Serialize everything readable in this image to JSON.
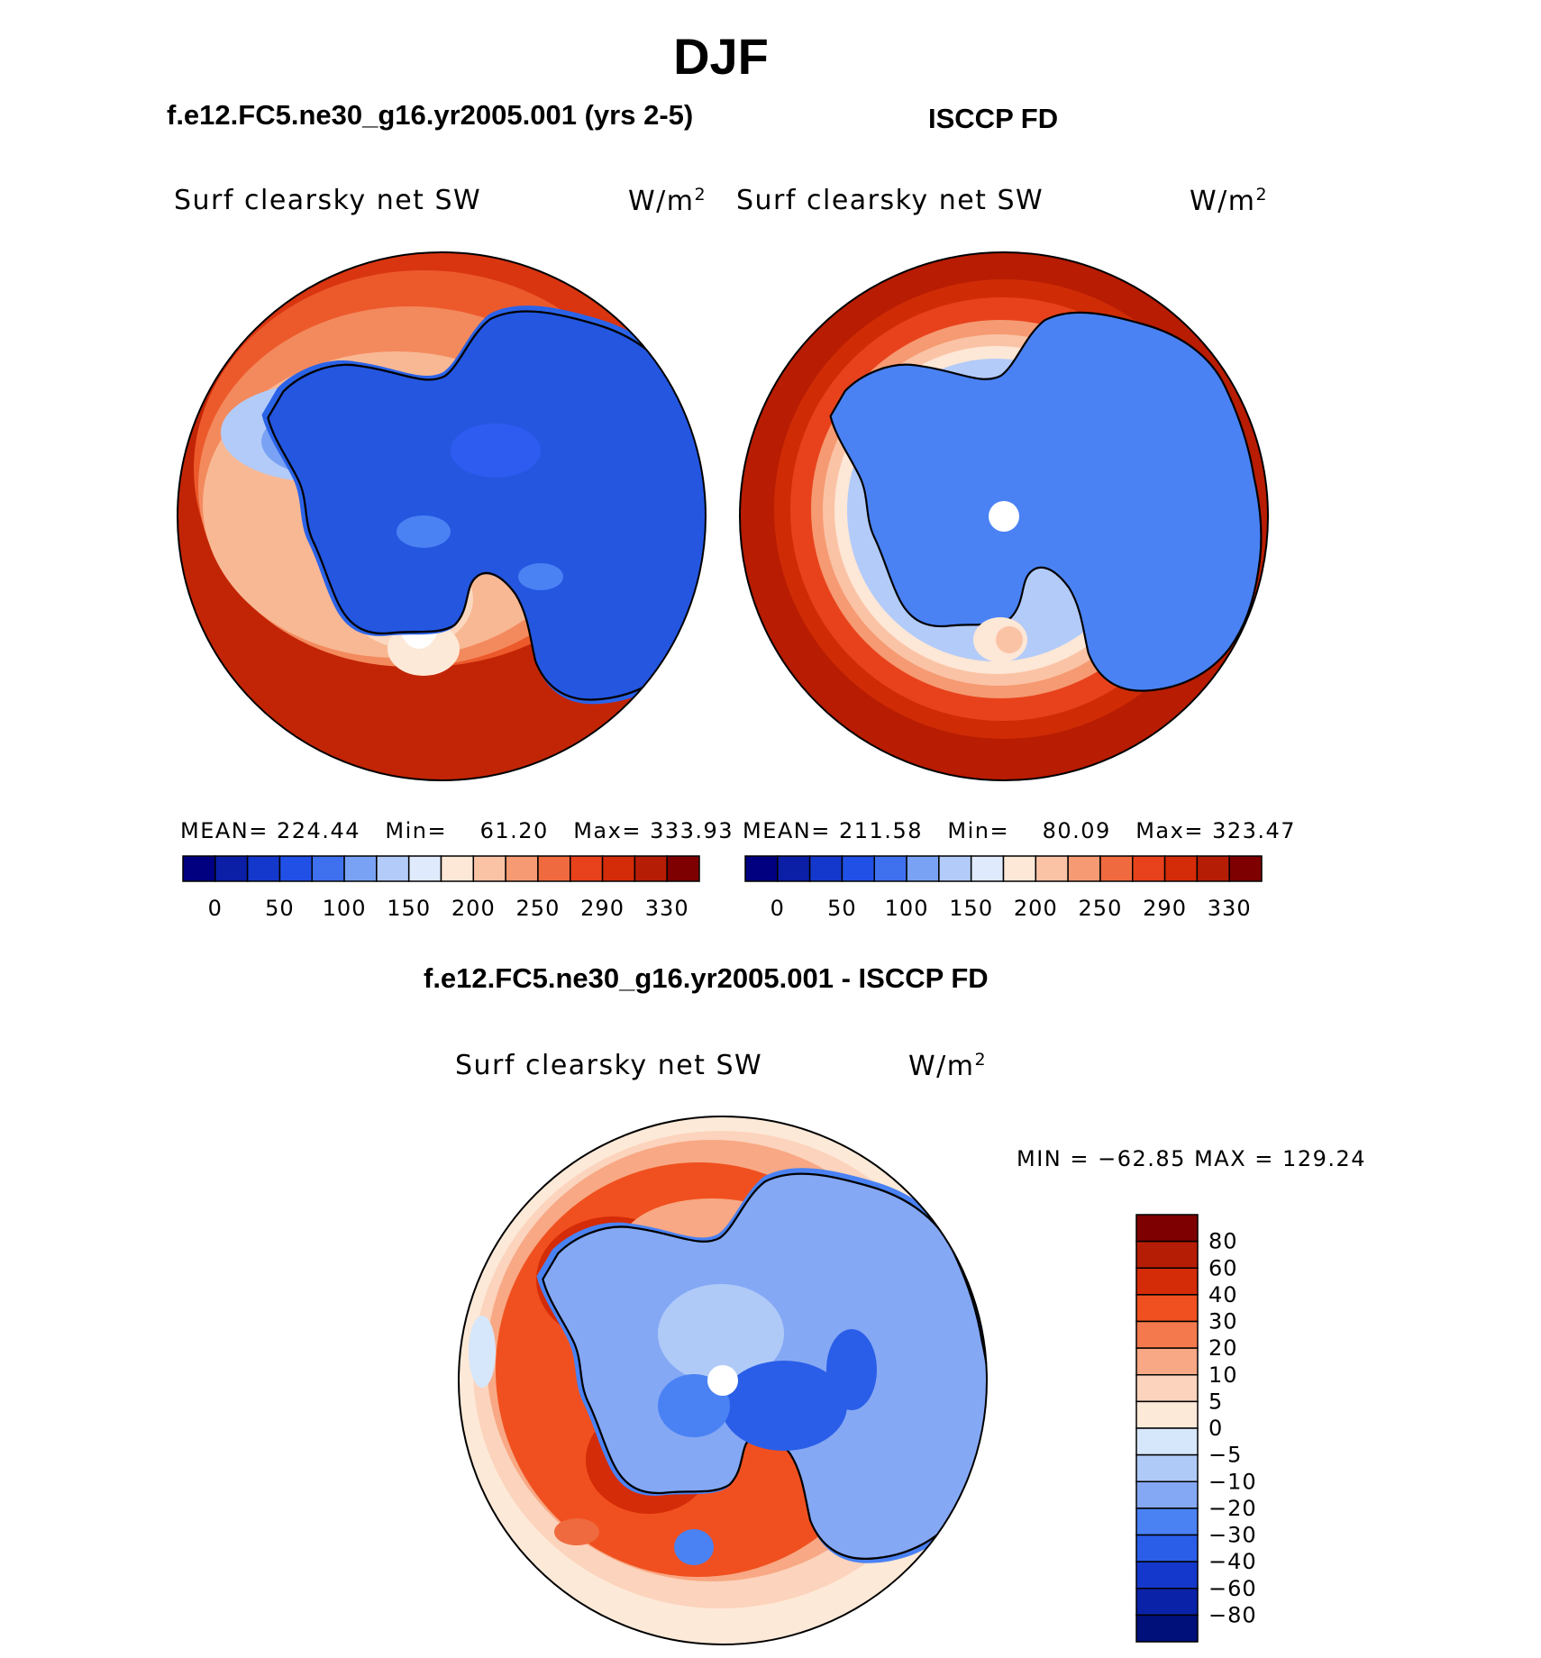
{
  "figure": {
    "title": "DJF",
    "left_panel_title": "f.e12.FC5.ne30_g16.yr2005.001 (yrs 2-5)",
    "right_panel_title": "ISCCP FD",
    "diff_panel_title": "f.e12.FC5.ne30_g16.yr2005.001 - ISCCP FD"
  },
  "colors": {
    "ocean_left": "#c22505",
    "ocean_right": "#b81c02",
    "ice_blue": "#2b63e8",
    "mid_blue": "#4a82f4",
    "coast": "#000000"
  },
  "chart_data": [
    {
      "type": "heatmap",
      "projection": "south-polar-stereographic",
      "name": "model",
      "variable_label": "Surf clearsky net SW",
      "units": "W/m",
      "units_superscript": "2",
      "stats": {
        "mean_label": "MEAN=",
        "mean": "224.44",
        "min_label": "Min=",
        "min": "61.20",
        "max_label": "Max=",
        "max": "333.93"
      },
      "levels": [
        0,
        25,
        50,
        75,
        100,
        125,
        150,
        175,
        200,
        225,
        250,
        270,
        290,
        310,
        330
      ],
      "tick_labels": [
        "0",
        "50",
        "100",
        "150",
        "200",
        "250",
        "290",
        "330"
      ],
      "palette": [
        "#000080",
        "#0a1ea6",
        "#1438cc",
        "#2050e6",
        "#3f70ee",
        "#7aa2f4",
        "#b3cbf8",
        "#dfeafc",
        "#fde7d6",
        "#fbc3a6",
        "#f59a72",
        "#ef6a3e",
        "#e8421c",
        "#d42b08",
        "#b51d04",
        "#7f0000"
      ]
    },
    {
      "type": "heatmap",
      "projection": "south-polar-stereographic",
      "name": "obs",
      "variable_label": "Surf clearsky net SW",
      "units": "W/m",
      "units_superscript": "2",
      "stats": {
        "mean_label": "MEAN=",
        "mean": "211.58",
        "min_label": "Min=",
        "min": "80.09",
        "max_label": "Max=",
        "max": "323.47"
      },
      "levels": [
        0,
        25,
        50,
        75,
        100,
        125,
        150,
        175,
        200,
        225,
        250,
        270,
        290,
        310,
        330
      ],
      "tick_labels": [
        "0",
        "50",
        "100",
        "150",
        "200",
        "250",
        "290",
        "330"
      ],
      "palette": [
        "#000080",
        "#0a1ea6",
        "#1438cc",
        "#2050e6",
        "#3f70ee",
        "#7aa2f4",
        "#b3cbf8",
        "#dfeafc",
        "#fde7d6",
        "#fbc3a6",
        "#f59a72",
        "#ef6a3e",
        "#e8421c",
        "#d42b08",
        "#b51d04",
        "#7f0000"
      ]
    },
    {
      "type": "heatmap",
      "projection": "south-polar-stereographic",
      "name": "difference",
      "variable_label": "Surf clearsky net SW",
      "units": "W/m",
      "units_superscript": "2",
      "stats": {
        "min_label": "MIN =",
        "min": "−62.85",
        "max_label": "MAX =",
        "max": "129.24"
      },
      "levels": [
        80,
        60,
        40,
        30,
        20,
        10,
        5,
        0,
        -5,
        -10,
        -20,
        -30,
        -40,
        -60,
        -80
      ],
      "tick_labels": [
        "80",
        "60",
        "40",
        "30",
        "20",
        "10",
        "5",
        "0",
        "−5",
        "−10",
        "−20",
        "−30",
        "−40",
        "−60",
        "−80"
      ],
      "palette": [
        "#7f0000",
        "#b51d04",
        "#d42b08",
        "#f0501f",
        "#f47a4e",
        "#f8a884",
        "#fcd3bc",
        "#fde9d8",
        "#d6e7fb",
        "#b0caf8",
        "#85a8f5",
        "#4a82f4",
        "#2a5ee8",
        "#1438cc",
        "#0a22a8",
        "#00107a"
      ]
    }
  ]
}
